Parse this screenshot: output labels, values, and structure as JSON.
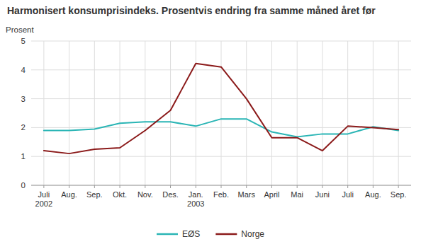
{
  "chart_data": {
    "type": "line",
    "title": "Harmonisert konsumprisindeks. Prosentvis endring fra samme måned året før",
    "y_label": "Prosent",
    "categories": [
      "Juli\n2002",
      "Aug.",
      "Sep.",
      "Okt.",
      "Nov.",
      "Des.",
      "Jan.\n2003",
      "Feb.",
      "Mars",
      "April",
      "Mai",
      "Juni",
      "Juli",
      "Aug.",
      "Sep."
    ],
    "series": [
      {
        "name": "EØS",
        "color": "#2ab5b5",
        "values": [
          1.9,
          1.9,
          1.95,
          2.15,
          2.2,
          2.2,
          2.05,
          2.3,
          2.3,
          1.85,
          1.68,
          1.78,
          1.78,
          2.03,
          1.9
        ]
      },
      {
        "name": "Norge",
        "color": "#8b1a1a",
        "values": [
          1.2,
          1.1,
          1.25,
          1.3,
          1.9,
          2.6,
          4.22,
          4.1,
          3.0,
          1.65,
          1.65,
          1.2,
          2.05,
          2.0,
          1.93
        ]
      }
    ],
    "ylim": [
      0,
      5
    ],
    "yticks": [
      0,
      1,
      2,
      3,
      4,
      5
    ],
    "grid": true,
    "legend": "bottom"
  }
}
